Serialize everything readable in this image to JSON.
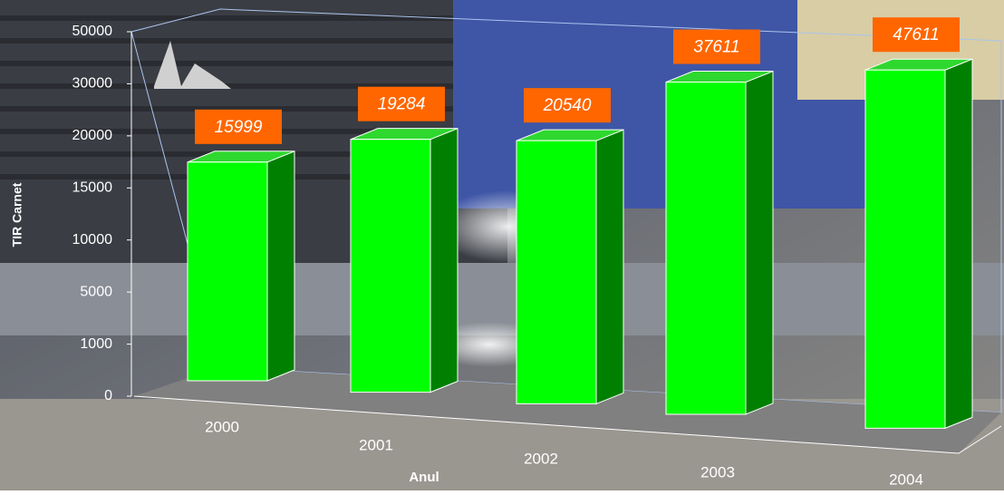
{
  "chart_data": {
    "type": "bar3d",
    "x_label": "Anul",
    "y_label": "TIR Carnet",
    "categories": [
      "2000",
      "2001",
      "2002",
      "2003",
      "2004"
    ],
    "values": [
      15999,
      19284,
      20540,
      37611,
      47611
    ],
    "color": "#00ff00",
    "side_color": "#008000",
    "top_color": "#2fd82f",
    "label_box_color": "#ff6600",
    "ylim": [
      0,
      50000
    ],
    "yticks": [
      0,
      1000,
      5000,
      10000,
      15000,
      20000,
      30000,
      50000
    ],
    "y_scale": "tick-spaced"
  }
}
